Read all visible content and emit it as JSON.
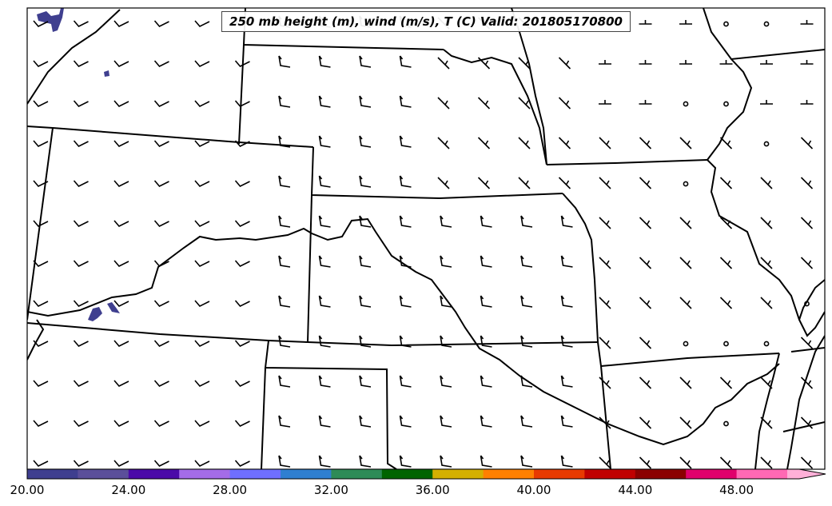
{
  "title": "250 mb height (m), wind (m/s), T (C) Valid: 201805170800",
  "colorbar": {
    "labels": [
      "20.00",
      "24.00",
      "28.00",
      "32.00",
      "36.00",
      "40.00",
      "44.00",
      "48.00"
    ],
    "colors": [
      "#3f3f8f",
      "#5b4f9a",
      "#4b0aa8",
      "#a46ce8",
      "#6f6fff",
      "#2f7fd0",
      "#2e8b57",
      "#006400",
      "#d4b000",
      "#ff8000",
      "#e83a00",
      "#c00000",
      "#8b0000",
      "#e0006c",
      "#ff69b4",
      "#ffb0d8"
    ],
    "extend": "max"
  },
  "colors": {
    "fill_blob": "#3f3f8f",
    "lines": "#000000"
  }
}
